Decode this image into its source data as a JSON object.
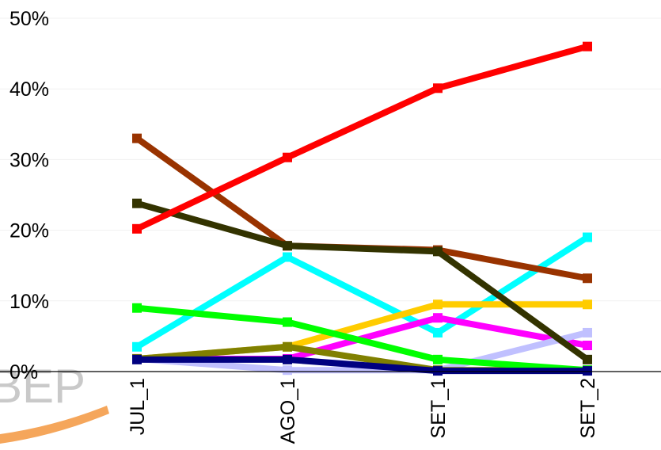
{
  "watermark": {
    "text": "BEP"
  },
  "chart_data": {
    "type": "line",
    "categories": [
      "JUL_1",
      "AGO_1",
      "SET_1",
      "SET_2"
    ],
    "yticks": [
      "0%",
      "10%",
      "20%",
      "30%",
      "40%",
      "50%"
    ],
    "ylim": [
      0,
      50
    ],
    "grid": true,
    "series": [
      {
        "color": "#00ffff",
        "values": [
          3.5,
          16.2,
          5.5,
          19.0
        ]
      },
      {
        "color": "#ffcc00",
        "values": [
          1.8,
          3.5,
          9.5,
          9.5
        ]
      },
      {
        "color": "#ff00ff",
        "values": [
          1.8,
          1.8,
          7.6,
          3.7
        ]
      },
      {
        "color": "#c0c0ff",
        "values": [
          1.8,
          0.2,
          0.2,
          5.5
        ]
      },
      {
        "color": "#808000",
        "values": [
          1.8,
          3.5,
          0.2,
          0.2
        ]
      },
      {
        "color": "#00ff00",
        "values": [
          9.0,
          7.0,
          1.7,
          0.2
        ]
      },
      {
        "color": "#993300",
        "values": [
          33.0,
          17.8,
          17.2,
          13.2
        ]
      },
      {
        "color": "#333300",
        "values": [
          23.8,
          17.8,
          17.0,
          1.7
        ]
      },
      {
        "color": "#ff0000",
        "values": [
          20.2,
          30.3,
          40.1,
          46.0
        ]
      },
      {
        "color": "#000080",
        "values": [
          1.7,
          1.7,
          0.1,
          0.1
        ]
      }
    ]
  }
}
